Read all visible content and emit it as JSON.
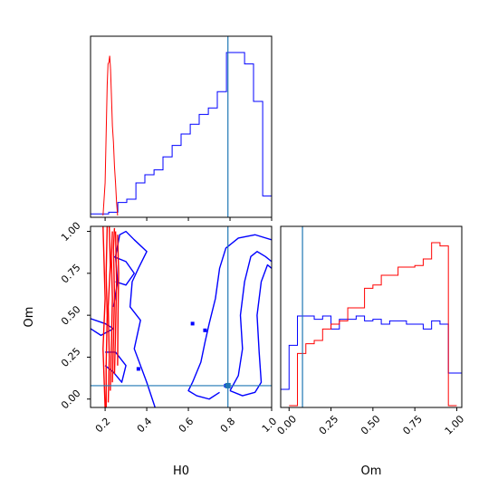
{
  "chart_data": [
    {
      "panel": "H0-marginal",
      "type": "histogram",
      "xlim": [
        0.13,
        1.0
      ],
      "truth": 0.79,
      "truth_color": "#1f77b4",
      "series": [
        {
          "color": "#0000ff",
          "edges": [
            0.13,
            0.174,
            0.217,
            0.261,
            0.304,
            0.348,
            0.391,
            0.435,
            0.478,
            0.522,
            0.565,
            0.609,
            0.652,
            0.696,
            0.739,
            0.783,
            0.826,
            0.87,
            0.913,
            0.957,
            1.0
          ],
          "values": [
            0.01,
            0.01,
            0.02,
            0.08,
            0.1,
            0.2,
            0.25,
            0.28,
            0.36,
            0.43,
            0.5,
            0.56,
            0.62,
            0.66,
            0.76,
            1.0,
            1.0,
            0.93,
            0.7,
            0.12
          ]
        },
        {
          "color": "#ff0000",
          "points": [
            [
              0.19,
              0
            ],
            [
              0.2,
              0.2
            ],
            [
              0.205,
              0.5
            ],
            [
              0.21,
              0.8
            ],
            [
              0.214,
              0.93
            ],
            [
              0.218,
              0.94
            ],
            [
              0.222,
              0.98
            ],
            [
              0.226,
              0.9
            ],
            [
              0.23,
              0.75
            ],
            [
              0.235,
              0.55
            ],
            [
              0.24,
              0.45
            ],
            [
              0.245,
              0.3
            ],
            [
              0.25,
              0.2
            ],
            [
              0.255,
              0.08
            ],
            [
              0.26,
              0
            ]
          ]
        }
      ]
    },
    {
      "panel": "H0-Om-joint",
      "type": "contour",
      "xlim": [
        0.13,
        1.0
      ],
      "ylim": [
        -0.05,
        1.03
      ],
      "xticks": [
        "0.2",
        "0.4",
        "0.6",
        "0.8",
        "1.0"
      ],
      "yticks": [
        "0.00",
        "0.25",
        "0.50",
        "0.75",
        "1.00"
      ],
      "xlabel": "H0",
      "ylabel": "Om",
      "truth": [
        0.79,
        0.08
      ],
      "truth_color": "#1f77b4",
      "series": [
        {
          "color": "#0000ff",
          "contours": [
            [
              [
                0.13,
                0.42
              ],
              [
                0.18,
                0.38
              ],
              [
                0.21,
                0.4
              ],
              [
                0.24,
                0.42
              ],
              [
                0.2,
                0.45
              ],
              [
                0.13,
                0.48
              ]
            ],
            [
              [
                0.2,
                0.2
              ],
              [
                0.24,
                0.16
              ],
              [
                0.28,
                0.1
              ],
              [
                0.3,
                0.2
              ],
              [
                0.25,
                0.28
              ],
              [
                0.2,
                0.28
              ]
            ],
            [
              [
                0.24,
                0.55
              ],
              [
                0.26,
                0.7
              ],
              [
                0.25,
                0.85
              ],
              [
                0.27,
                0.98
              ],
              [
                0.3,
                1.0
              ],
              [
                0.34,
                0.95
              ],
              [
                0.4,
                0.88
              ],
              [
                0.36,
                0.78
              ],
              [
                0.33,
                0.7
              ],
              [
                0.32,
                0.55
              ],
              [
                0.37,
                0.47
              ],
              [
                0.34,
                0.3
              ],
              [
                0.4,
                0.1
              ],
              [
                0.44,
                -0.05
              ]
            ],
            [
              [
                0.24,
                0.85
              ],
              [
                0.3,
                0.82
              ],
              [
                0.34,
                0.75
              ],
              [
                0.3,
                0.68
              ],
              [
                0.25,
                0.7
              ]
            ],
            [
              [
                0.62,
                0.1
              ],
              [
                0.66,
                0.22
              ],
              [
                0.68,
                0.34
              ],
              [
                0.7,
                0.45
              ],
              [
                0.73,
                0.6
              ],
              [
                0.75,
                0.78
              ],
              [
                0.78,
                0.9
              ],
              [
                0.84,
                0.96
              ],
              [
                0.92,
                0.98
              ],
              [
                1.0,
                0.95
              ]
            ],
            [
              [
                0.62,
                0.1
              ],
              [
                0.6,
                0.05
              ],
              [
                0.64,
                0.02
              ],
              [
                0.7,
                0.0
              ],
              [
                0.75,
                0.04
              ]
            ],
            [
              [
                0.8,
                0.05
              ],
              [
                0.84,
                0.14
              ],
              [
                0.86,
                0.3
              ],
              [
                0.85,
                0.5
              ],
              [
                0.87,
                0.7
              ],
              [
                0.9,
                0.85
              ],
              [
                0.93,
                0.88
              ],
              [
                0.97,
                0.85
              ],
              [
                1.0,
                0.82
              ]
            ],
            [
              [
                0.8,
                0.05
              ],
              [
                0.86,
                0.02
              ],
              [
                0.92,
                0.04
              ],
              [
                0.95,
                0.1
              ],
              [
                0.94,
                0.28
              ],
              [
                0.93,
                0.5
              ],
              [
                0.95,
                0.7
              ],
              [
                0.98,
                0.8
              ],
              [
                1.0,
                0.78
              ]
            ]
          ],
          "blobs": [
            [
              0.36,
              0.18
            ],
            [
              0.62,
              0.45
            ],
            [
              0.68,
              0.41
            ],
            [
              0.78,
              0.08
            ]
          ]
        },
        {
          "color": "#ff0000",
          "contours": [
            [
              [
                0.2,
                -0.05
              ],
              [
                0.19,
                0.3
              ],
              [
                0.2,
                0.6
              ],
              [
                0.19,
                1.03
              ]
            ],
            [
              [
                0.205,
                -0.05
              ],
              [
                0.205,
                0.2
              ],
              [
                0.21,
                0.5
              ],
              [
                0.205,
                0.75
              ],
              [
                0.21,
                1.03
              ]
            ],
            [
              [
                0.215,
                -0.02
              ],
              [
                0.22,
                0.25
              ],
              [
                0.215,
                0.55
              ],
              [
                0.225,
                0.8
              ],
              [
                0.22,
                1.03
              ]
            ],
            [
              [
                0.225,
                0.05
              ],
              [
                0.23,
                0.3
              ],
              [
                0.235,
                0.6
              ],
              [
                0.23,
                0.85
              ],
              [
                0.235,
                1.0
              ]
            ],
            [
              [
                0.235,
                0.1
              ],
              [
                0.24,
                0.35
              ],
              [
                0.245,
                0.62
              ],
              [
                0.24,
                0.9
              ],
              [
                0.245,
                1.02
              ]
            ],
            [
              [
                0.245,
                0.15
              ],
              [
                0.25,
                0.4
              ],
              [
                0.255,
                0.7
              ],
              [
                0.25,
                1.0
              ]
            ],
            [
              [
                0.26,
                0.2
              ],
              [
                0.262,
                0.5
              ],
              [
                0.265,
                0.75
              ],
              [
                0.26,
                0.98
              ]
            ]
          ]
        }
      ]
    },
    {
      "panel": "Om-marginal",
      "type": "histogram",
      "xlim": [
        -0.05,
        1.03
      ],
      "xticks": [
        "0.00",
        "0.25",
        "0.50",
        "0.75",
        "1.00"
      ],
      "xlabel": "Om",
      "truth": 0.08,
      "truth_color": "#1f77b4",
      "series": [
        {
          "color": "#0000ff",
          "edges": [
            -0.05,
            0.0,
            0.05,
            0.1,
            0.15,
            0.2,
            0.25,
            0.3,
            0.35,
            0.4,
            0.45,
            0.5,
            0.55,
            0.6,
            0.65,
            0.7,
            0.75,
            0.8,
            0.85,
            0.9,
            0.95,
            1.0,
            1.03
          ],
          "values": [
            0.1,
            0.37,
            0.55,
            0.55,
            0.53,
            0.55,
            0.47,
            0.53,
            0.53,
            0.55,
            0.52,
            0.53,
            0.5,
            0.52,
            0.52,
            0.5,
            0.5,
            0.47,
            0.52,
            0.5,
            0.2,
            0.2
          ]
        },
        {
          "color": "#ff0000",
          "edges": [
            0.0,
            0.05,
            0.1,
            0.15,
            0.2,
            0.25,
            0.3,
            0.35,
            0.4,
            0.45,
            0.5,
            0.55,
            0.6,
            0.65,
            0.7,
            0.75,
            0.8,
            0.85,
            0.9,
            0.95,
            1.0
          ],
          "values": [
            0.0,
            0.32,
            0.38,
            0.4,
            0.47,
            0.5,
            0.52,
            0.6,
            0.6,
            0.72,
            0.74,
            0.8,
            0.8,
            0.85,
            0.85,
            0.86,
            0.9,
            1.0,
            0.98,
            0.0
          ]
        }
      ]
    }
  ]
}
